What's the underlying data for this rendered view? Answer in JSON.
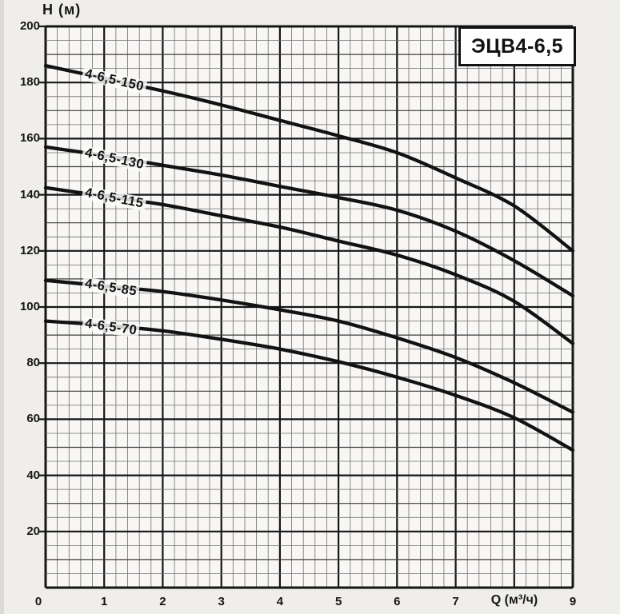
{
  "chart_data": {
    "type": "line",
    "title": "ЭЦВ4-6,5",
    "ylabel": "H (м)",
    "xlabel": "Q (м³/ч)",
    "xlim": [
      0,
      9
    ],
    "ylim": [
      0,
      200
    ],
    "grid": true,
    "legend": "inline-curve-labels",
    "x_major_step": 1,
    "x_minor_step": 0.2,
    "y_major_step": 20,
    "y_medium_step": 10,
    "y_minor_step": 5,
    "x_tick_labels": [
      "0",
      "1",
      "2",
      "3",
      "4",
      "5",
      "6",
      "7",
      "9"
    ],
    "x_tick_values": [
      0,
      1,
      2,
      3,
      4,
      5,
      6,
      7,
      9
    ],
    "xlabel_at": 8,
    "y_tick_values": [
      200,
      180,
      160,
      140,
      120,
      100,
      80,
      60,
      40,
      20
    ],
    "x": [
      0,
      1,
      2,
      3,
      4,
      5,
      6,
      7,
      8,
      9
    ],
    "series": [
      {
        "name": "4-6,5-150",
        "values": [
          186,
          181.5,
          177,
          172,
          166.5,
          161,
          155,
          146,
          136,
          120
        ]
      },
      {
        "name": "4-6,5-130",
        "values": [
          157,
          154,
          150.5,
          147,
          143,
          139,
          134.5,
          127,
          116.5,
          104
        ]
      },
      {
        "name": "4-6,5-115",
        "values": [
          142.5,
          139.5,
          136.5,
          132.5,
          128.5,
          123.5,
          118.5,
          111.5,
          102,
          87
        ]
      },
      {
        "name": "4-6,5-85",
        "values": [
          109.5,
          107.5,
          105.5,
          102.5,
          99,
          95,
          89,
          82,
          73,
          62.5
        ]
      },
      {
        "name": "4-6,5-70",
        "values": [
          95,
          93.5,
          91.5,
          88.5,
          85,
          80.5,
          75,
          68.5,
          60.5,
          49
        ]
      }
    ],
    "colors": {
      "curve": "#121212",
      "grid_major": "#161616",
      "grid_medium": "#3c3c3c",
      "grid_minor": "#6e6e6e",
      "plot_background": "#f8f7f5",
      "page_background": "#efeeea"
    }
  }
}
